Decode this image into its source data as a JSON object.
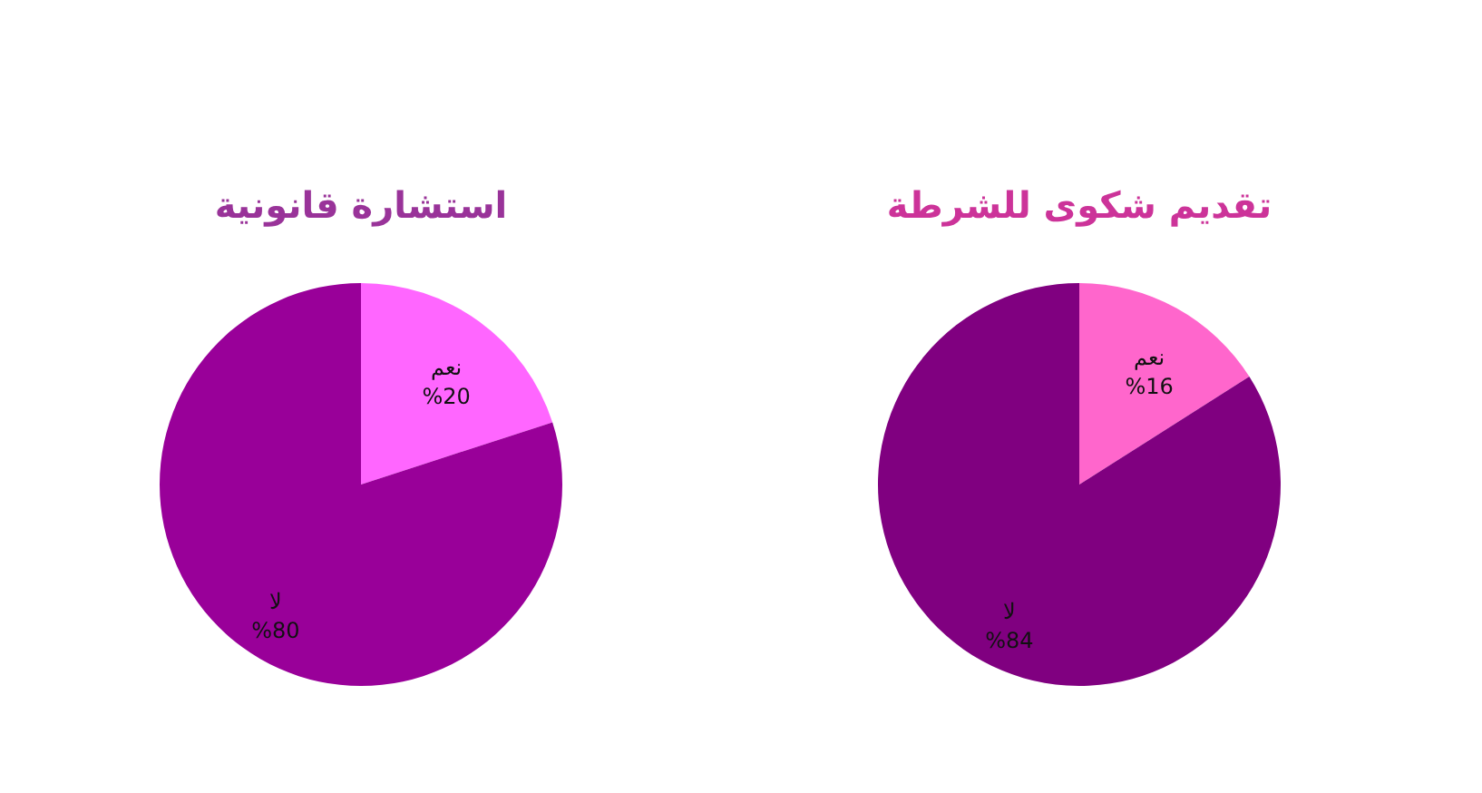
{
  "chart_data": [
    {
      "type": "pie",
      "title": "استشارة قانونية",
      "categories": [
        "نعم",
        "لا"
      ],
      "values": [
        20,
        80
      ],
      "colors": [
        "#ff66ff",
        "#990099"
      ],
      "value_labels": [
        "%20",
        "%80"
      ]
    },
    {
      "type": "pie",
      "title": "تقديم شكوى للشرطة",
      "categories": [
        "نعم",
        "لا"
      ],
      "values": [
        16,
        84
      ],
      "colors": [
        "#ff66cc",
        "#800080"
      ],
      "value_labels": [
        "%16",
        "%84"
      ]
    }
  ]
}
